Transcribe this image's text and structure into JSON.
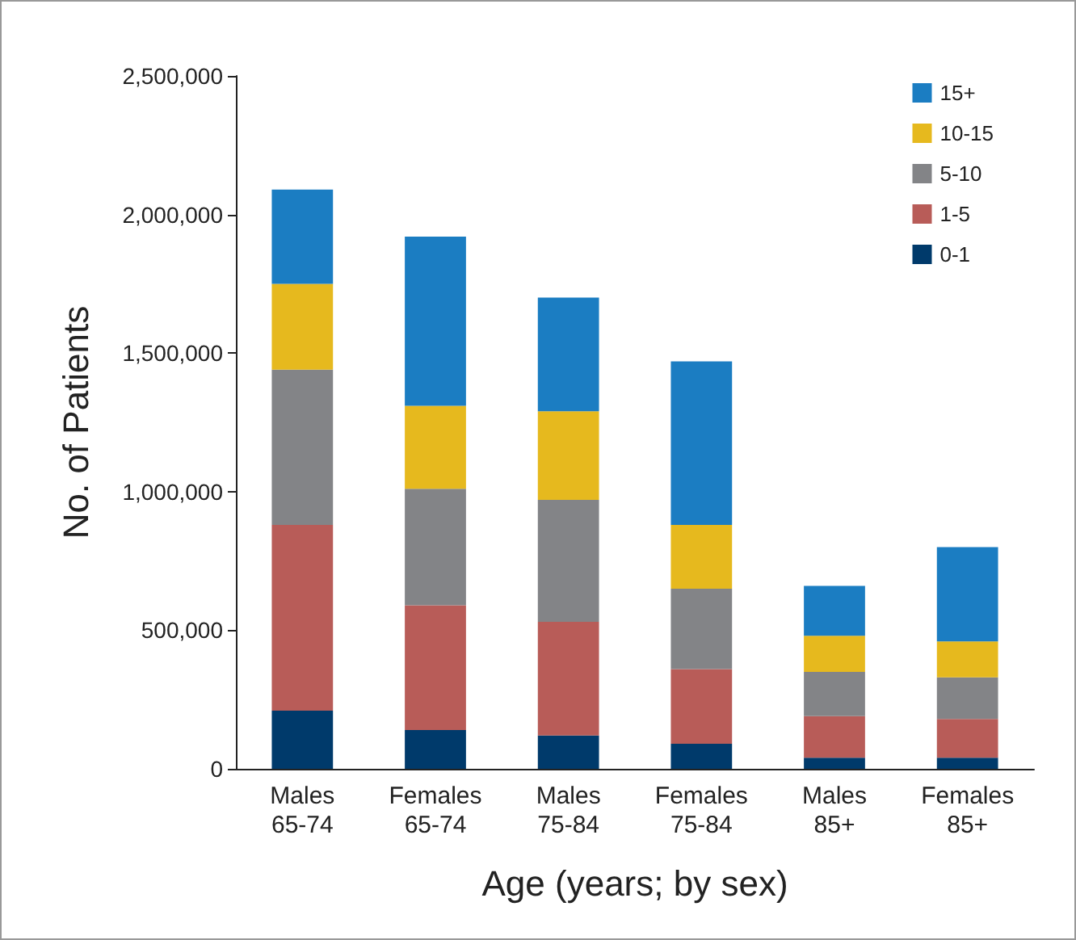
{
  "chart_data": {
    "type": "bar",
    "stacked": true,
    "xlabel": "Age (years; by sex)",
    "ylabel": "No. of Patients",
    "categories": [
      "Males 65-74",
      "Females 65-74",
      "Males 75-84",
      "Females 75-84",
      "Males 85+",
      "Females 85+"
    ],
    "series": [
      {
        "name": "0-1",
        "color": "#003a6b",
        "values": [
          210000,
          140000,
          120000,
          90000,
          40000,
          40000
        ]
      },
      {
        "name": "1-5",
        "color": "#b85c58",
        "values": [
          670000,
          450000,
          410000,
          270000,
          150000,
          140000
        ]
      },
      {
        "name": "5-10",
        "color": "#838487",
        "values": [
          560000,
          420000,
          440000,
          290000,
          160000,
          150000
        ]
      },
      {
        "name": "10-15",
        "color": "#e6b91e",
        "values": [
          310000,
          300000,
          320000,
          230000,
          130000,
          130000
        ]
      },
      {
        "name": "15+",
        "color": "#1b7dc2",
        "values": [
          340000,
          610000,
          410000,
          590000,
          180000,
          340000
        ]
      }
    ],
    "ylim": [
      0,
      2500000
    ],
    "yticks": [
      0,
      {
        "value": 500000,
        "label": "500,000"
      },
      {
        "value": 1000000,
        "label": "1,000,000"
      },
      {
        "value": 1500000,
        "label": "1,500,000"
      },
      {
        "value": 2000000,
        "label": "2,000,000"
      },
      {
        "value": 2500000,
        "label": "2,500,000"
      }
    ],
    "grid": false,
    "legend": "top right"
  }
}
